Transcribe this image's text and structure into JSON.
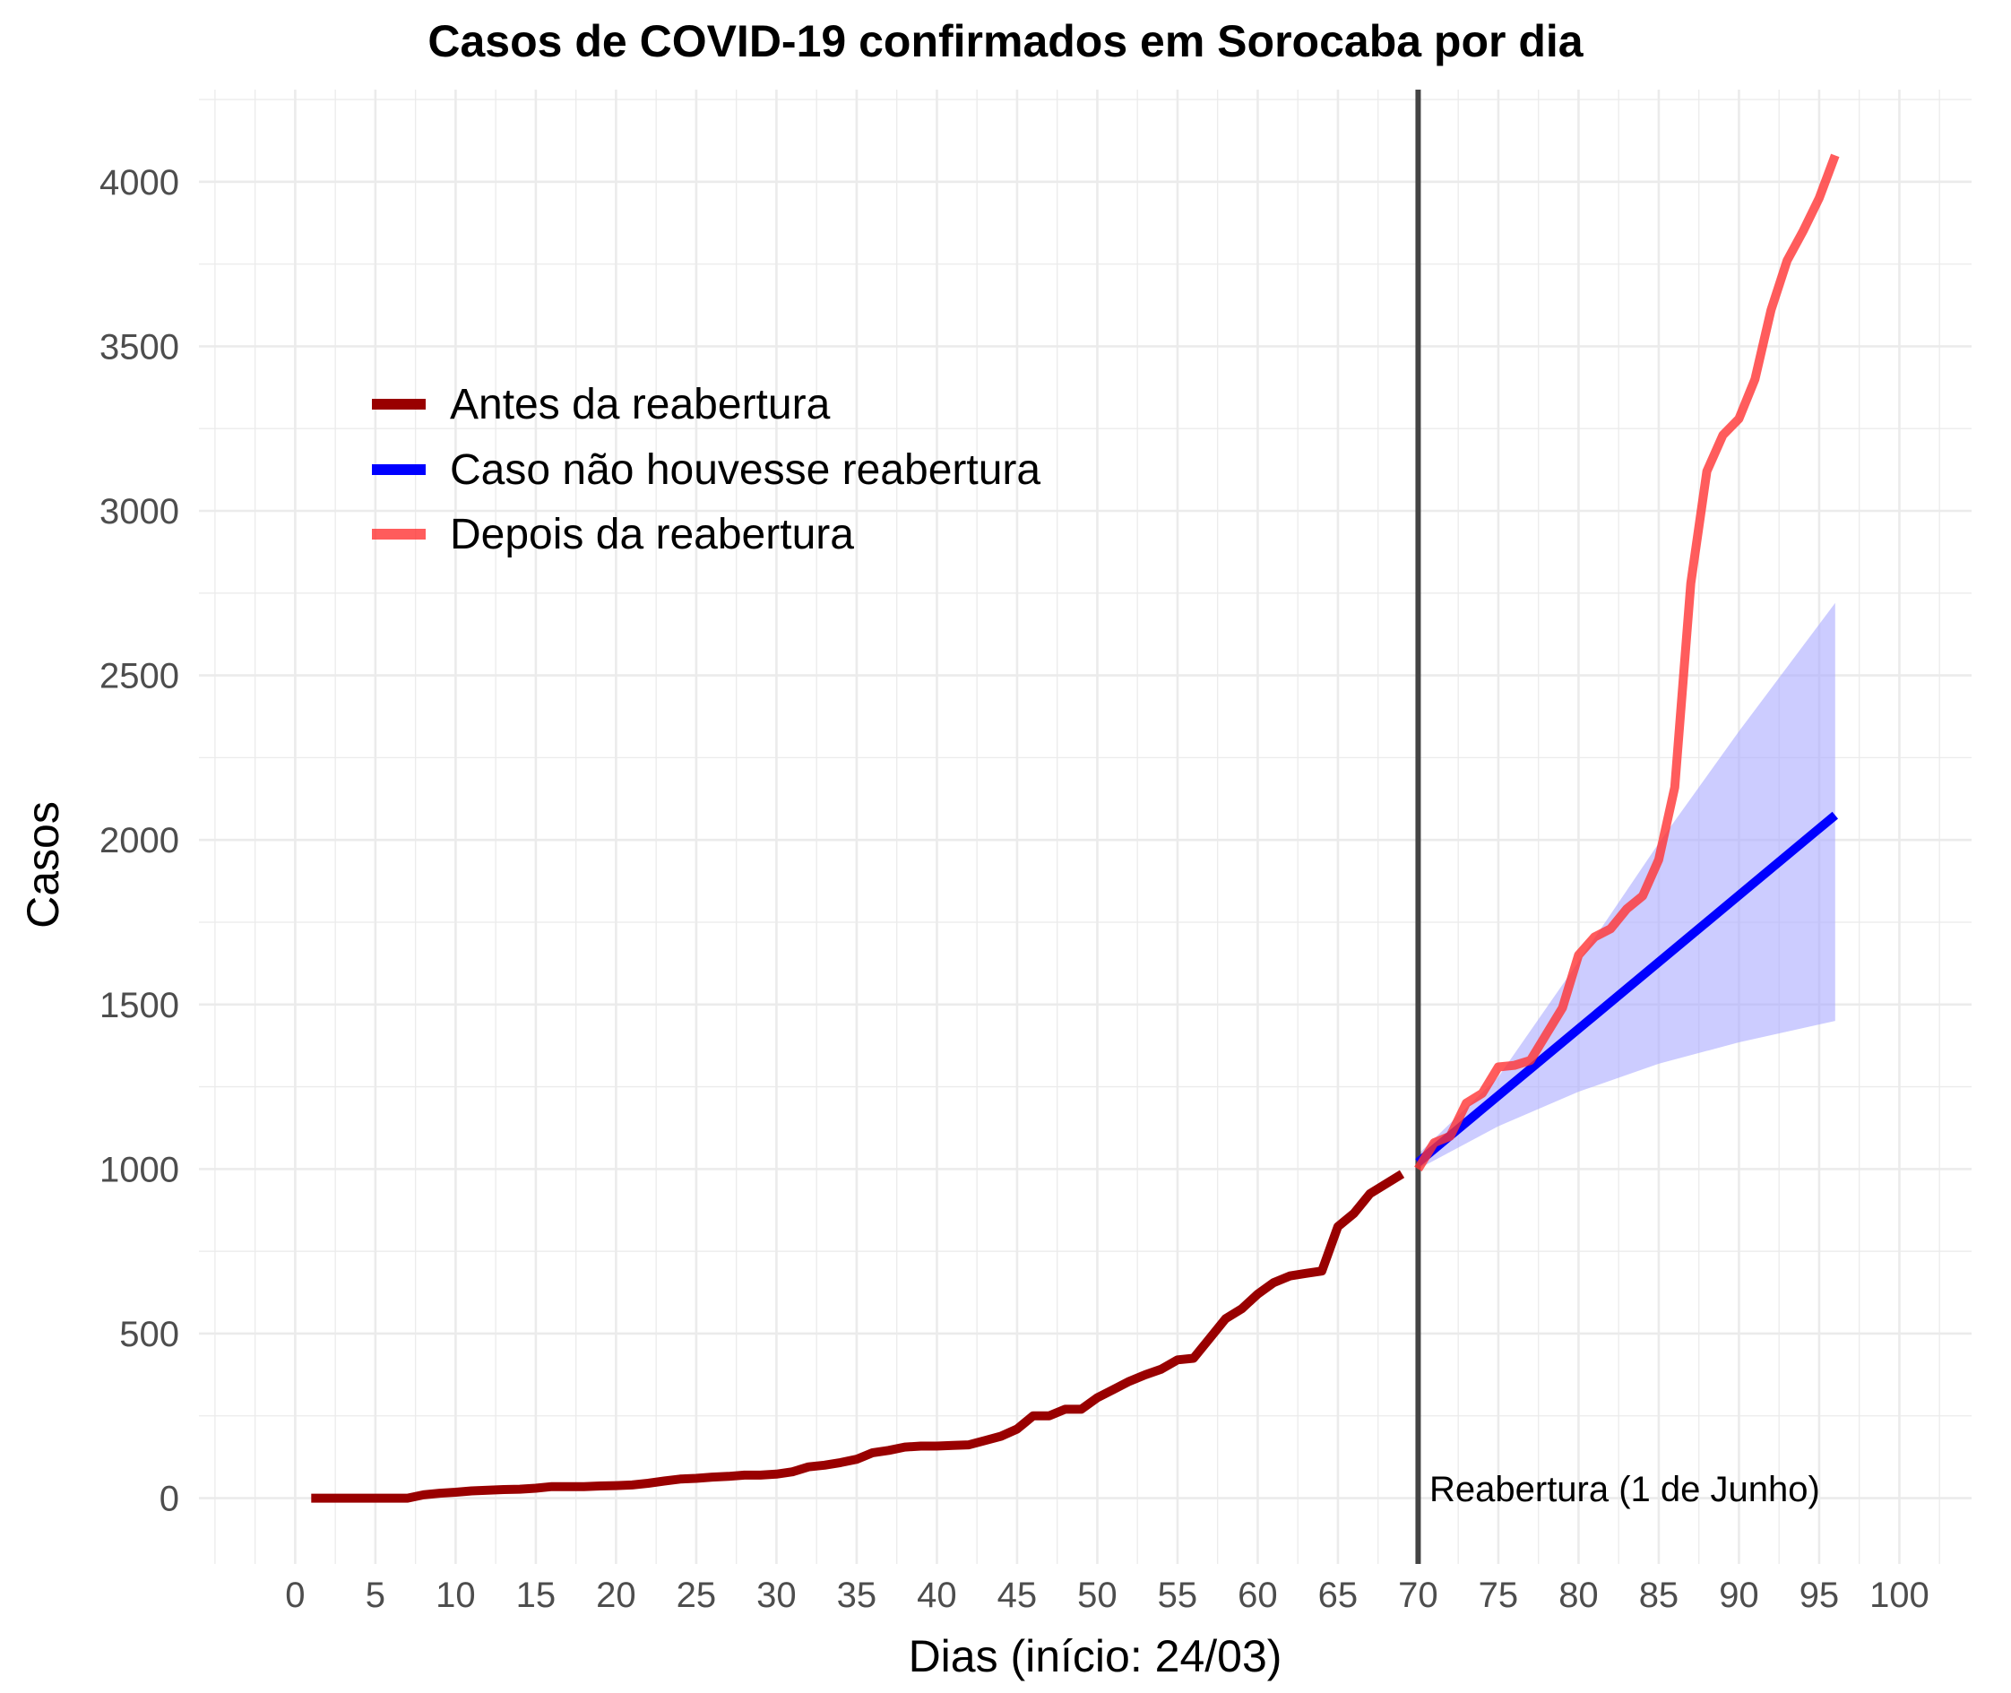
{
  "chart_data": {
    "type": "line",
    "title": "Casos de COVID-19 confirmados em Sorocaba por dia",
    "xlabel": "Dias (início: 24/03)",
    "ylabel": "Casos",
    "xlim": [
      -6,
      104.5
    ],
    "ylim": [
      -200,
      4280
    ],
    "x_ticks": [
      0,
      5,
      10,
      15,
      20,
      25,
      30,
      35,
      40,
      45,
      50,
      55,
      60,
      65,
      70,
      75,
      80,
      85,
      90,
      95,
      100
    ],
    "y_ticks": [
      0,
      500,
      1000,
      1500,
      2000,
      2500,
      3000,
      3500,
      4000
    ],
    "grid": true,
    "legend_position": "top-left",
    "colors": {
      "antes": "#990000",
      "caso": "#0000ff",
      "depois": "#ff3333",
      "band": "#aaaaff",
      "vline": "#444444",
      "grid": "#ebebeb"
    },
    "series": [
      {
        "name": "Antes da reabertura",
        "key": "antes",
        "x": [
          1,
          2,
          3,
          4,
          5,
          6,
          7,
          8,
          9,
          10,
          11,
          12,
          13,
          14,
          15,
          16,
          17,
          18,
          19,
          20,
          21,
          22,
          23,
          24,
          25,
          26,
          27,
          28,
          29,
          30,
          31,
          32,
          33,
          34,
          35,
          36,
          37,
          38,
          39,
          40,
          41,
          42,
          43,
          44,
          45,
          46,
          47,
          48,
          49,
          50,
          51,
          52,
          53,
          54,
          55,
          56,
          57,
          58,
          59,
          60,
          61,
          62,
          63,
          64,
          65,
          66,
          67,
          68,
          69
        ],
        "y": [
          0,
          0,
          0,
          0,
          0,
          0,
          0,
          10,
          15,
          18,
          22,
          24,
          26,
          27,
          30,
          35,
          35,
          35,
          37,
          38,
          40,
          45,
          52,
          58,
          60,
          64,
          66,
          70,
          70,
          73,
          80,
          95,
          100,
          108,
          118,
          138,
          145,
          155,
          158,
          158,
          160,
          162,
          175,
          188,
          210,
          250,
          250,
          270,
          270,
          305,
          330,
          355,
          375,
          392,
          420,
          425,
          485,
          545,
          575,
          620,
          655,
          675,
          683,
          690,
          825,
          865,
          925,
          955,
          985
        ]
      },
      {
        "name": "Caso não houvesse reabertura",
        "key": "caso",
        "x": [
          70,
          96
        ],
        "y": [
          1020,
          2075
        ],
        "band_x": [
          70,
          75,
          80,
          85,
          90,
          96
        ],
        "band_lower": [
          1000,
          1130,
          1235,
          1320,
          1385,
          1450
        ],
        "band_upper": [
          1045,
          1280,
          1630,
          1990,
          2330,
          2720
        ]
      },
      {
        "name": "Depois da reabertura",
        "key": "depois",
        "x": [
          70,
          71,
          72,
          73,
          74,
          75,
          76,
          77,
          78,
          79,
          80,
          81,
          82,
          83,
          84,
          85,
          86,
          87,
          88,
          89,
          90,
          91,
          92,
          93,
          94,
          95,
          96
        ],
        "y": [
          1000,
          1080,
          1100,
          1200,
          1230,
          1310,
          1315,
          1330,
          1410,
          1490,
          1650,
          1705,
          1730,
          1790,
          1830,
          1940,
          2160,
          2780,
          3120,
          3230,
          3280,
          3400,
          3610,
          3760,
          3850,
          3950,
          4080
        ]
      }
    ],
    "vline": {
      "x": 70,
      "label": "Reabertura (1 de Junho)"
    }
  }
}
